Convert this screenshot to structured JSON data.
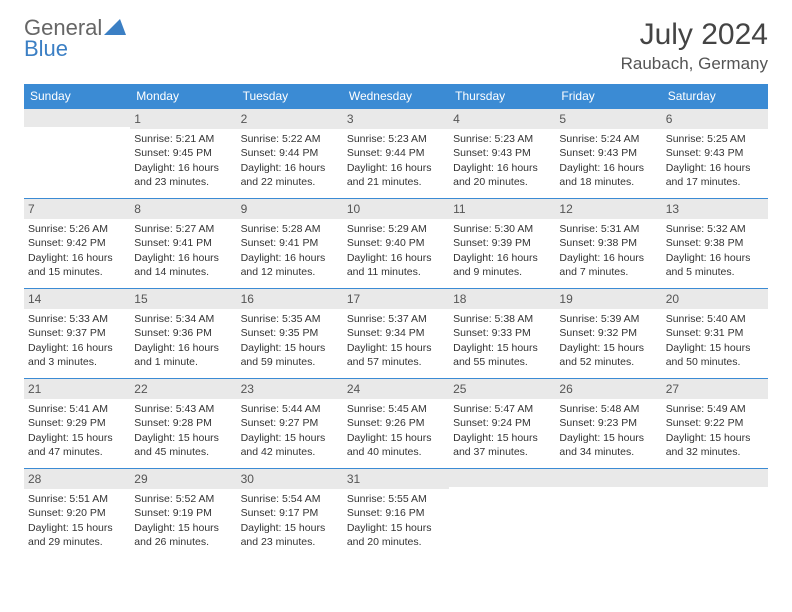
{
  "logo": {
    "word1": "General",
    "word2": "Blue"
  },
  "title": "July 2024",
  "location": "Raubach, Germany",
  "colors": {
    "header_bg": "#3b8bd4",
    "header_text": "#ffffff",
    "row_divider": "#3b8bd4",
    "daynum_bg": "#e9e9e9",
    "logo_accent": "#3b7fc4",
    "text": "#333333",
    "bg": "#ffffff"
  },
  "weekdays": [
    "Sunday",
    "Monday",
    "Tuesday",
    "Wednesday",
    "Thursday",
    "Friday",
    "Saturday"
  ],
  "weeks": [
    [
      {
        "n": "",
        "sr": "",
        "ss": "",
        "dl": ""
      },
      {
        "n": "1",
        "sr": "Sunrise: 5:21 AM",
        "ss": "Sunset: 9:45 PM",
        "dl": "Daylight: 16 hours and 23 minutes."
      },
      {
        "n": "2",
        "sr": "Sunrise: 5:22 AM",
        "ss": "Sunset: 9:44 PM",
        "dl": "Daylight: 16 hours and 22 minutes."
      },
      {
        "n": "3",
        "sr": "Sunrise: 5:23 AM",
        "ss": "Sunset: 9:44 PM",
        "dl": "Daylight: 16 hours and 21 minutes."
      },
      {
        "n": "4",
        "sr": "Sunrise: 5:23 AM",
        "ss": "Sunset: 9:43 PM",
        "dl": "Daylight: 16 hours and 20 minutes."
      },
      {
        "n": "5",
        "sr": "Sunrise: 5:24 AM",
        "ss": "Sunset: 9:43 PM",
        "dl": "Daylight: 16 hours and 18 minutes."
      },
      {
        "n": "6",
        "sr": "Sunrise: 5:25 AM",
        "ss": "Sunset: 9:43 PM",
        "dl": "Daylight: 16 hours and 17 minutes."
      }
    ],
    [
      {
        "n": "7",
        "sr": "Sunrise: 5:26 AM",
        "ss": "Sunset: 9:42 PM",
        "dl": "Daylight: 16 hours and 15 minutes."
      },
      {
        "n": "8",
        "sr": "Sunrise: 5:27 AM",
        "ss": "Sunset: 9:41 PM",
        "dl": "Daylight: 16 hours and 14 minutes."
      },
      {
        "n": "9",
        "sr": "Sunrise: 5:28 AM",
        "ss": "Sunset: 9:41 PM",
        "dl": "Daylight: 16 hours and 12 minutes."
      },
      {
        "n": "10",
        "sr": "Sunrise: 5:29 AM",
        "ss": "Sunset: 9:40 PM",
        "dl": "Daylight: 16 hours and 11 minutes."
      },
      {
        "n": "11",
        "sr": "Sunrise: 5:30 AM",
        "ss": "Sunset: 9:39 PM",
        "dl": "Daylight: 16 hours and 9 minutes."
      },
      {
        "n": "12",
        "sr": "Sunrise: 5:31 AM",
        "ss": "Sunset: 9:38 PM",
        "dl": "Daylight: 16 hours and 7 minutes."
      },
      {
        "n": "13",
        "sr": "Sunrise: 5:32 AM",
        "ss": "Sunset: 9:38 PM",
        "dl": "Daylight: 16 hours and 5 minutes."
      }
    ],
    [
      {
        "n": "14",
        "sr": "Sunrise: 5:33 AM",
        "ss": "Sunset: 9:37 PM",
        "dl": "Daylight: 16 hours and 3 minutes."
      },
      {
        "n": "15",
        "sr": "Sunrise: 5:34 AM",
        "ss": "Sunset: 9:36 PM",
        "dl": "Daylight: 16 hours and 1 minute."
      },
      {
        "n": "16",
        "sr": "Sunrise: 5:35 AM",
        "ss": "Sunset: 9:35 PM",
        "dl": "Daylight: 15 hours and 59 minutes."
      },
      {
        "n": "17",
        "sr": "Sunrise: 5:37 AM",
        "ss": "Sunset: 9:34 PM",
        "dl": "Daylight: 15 hours and 57 minutes."
      },
      {
        "n": "18",
        "sr": "Sunrise: 5:38 AM",
        "ss": "Sunset: 9:33 PM",
        "dl": "Daylight: 15 hours and 55 minutes."
      },
      {
        "n": "19",
        "sr": "Sunrise: 5:39 AM",
        "ss": "Sunset: 9:32 PM",
        "dl": "Daylight: 15 hours and 52 minutes."
      },
      {
        "n": "20",
        "sr": "Sunrise: 5:40 AM",
        "ss": "Sunset: 9:31 PM",
        "dl": "Daylight: 15 hours and 50 minutes."
      }
    ],
    [
      {
        "n": "21",
        "sr": "Sunrise: 5:41 AM",
        "ss": "Sunset: 9:29 PM",
        "dl": "Daylight: 15 hours and 47 minutes."
      },
      {
        "n": "22",
        "sr": "Sunrise: 5:43 AM",
        "ss": "Sunset: 9:28 PM",
        "dl": "Daylight: 15 hours and 45 minutes."
      },
      {
        "n": "23",
        "sr": "Sunrise: 5:44 AM",
        "ss": "Sunset: 9:27 PM",
        "dl": "Daylight: 15 hours and 42 minutes."
      },
      {
        "n": "24",
        "sr": "Sunrise: 5:45 AM",
        "ss": "Sunset: 9:26 PM",
        "dl": "Daylight: 15 hours and 40 minutes."
      },
      {
        "n": "25",
        "sr": "Sunrise: 5:47 AM",
        "ss": "Sunset: 9:24 PM",
        "dl": "Daylight: 15 hours and 37 minutes."
      },
      {
        "n": "26",
        "sr": "Sunrise: 5:48 AM",
        "ss": "Sunset: 9:23 PM",
        "dl": "Daylight: 15 hours and 34 minutes."
      },
      {
        "n": "27",
        "sr": "Sunrise: 5:49 AM",
        "ss": "Sunset: 9:22 PM",
        "dl": "Daylight: 15 hours and 32 minutes."
      }
    ],
    [
      {
        "n": "28",
        "sr": "Sunrise: 5:51 AM",
        "ss": "Sunset: 9:20 PM",
        "dl": "Daylight: 15 hours and 29 minutes."
      },
      {
        "n": "29",
        "sr": "Sunrise: 5:52 AM",
        "ss": "Sunset: 9:19 PM",
        "dl": "Daylight: 15 hours and 26 minutes."
      },
      {
        "n": "30",
        "sr": "Sunrise: 5:54 AM",
        "ss": "Sunset: 9:17 PM",
        "dl": "Daylight: 15 hours and 23 minutes."
      },
      {
        "n": "31",
        "sr": "Sunrise: 5:55 AM",
        "ss": "Sunset: 9:16 PM",
        "dl": "Daylight: 15 hours and 20 minutes."
      },
      {
        "n": "",
        "sr": "",
        "ss": "",
        "dl": ""
      },
      {
        "n": "",
        "sr": "",
        "ss": "",
        "dl": ""
      },
      {
        "n": "",
        "sr": "",
        "ss": "",
        "dl": ""
      }
    ]
  ]
}
